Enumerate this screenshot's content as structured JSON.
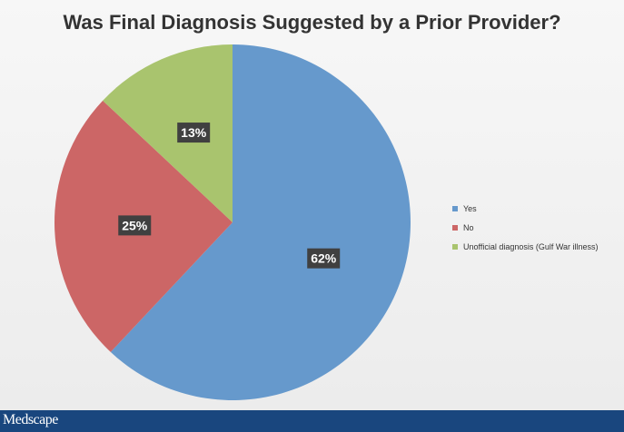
{
  "chart_data": {
    "type": "pie",
    "title": "Was Final Diagnosis Suggested by a Prior Provider?",
    "slices": [
      {
        "name": "Yes",
        "value": 62,
        "label": "62%",
        "color": "#6699cc"
      },
      {
        "name": "No",
        "value": 25,
        "label": "25%",
        "color": "#cc6666"
      },
      {
        "name": "Unofficial diagnosis (Gulf War illness)",
        "value": 13,
        "label": "13%",
        "color": "#a9c46e"
      }
    ],
    "legend_position": "right"
  },
  "footer": {
    "logo_text": "Medscape"
  }
}
